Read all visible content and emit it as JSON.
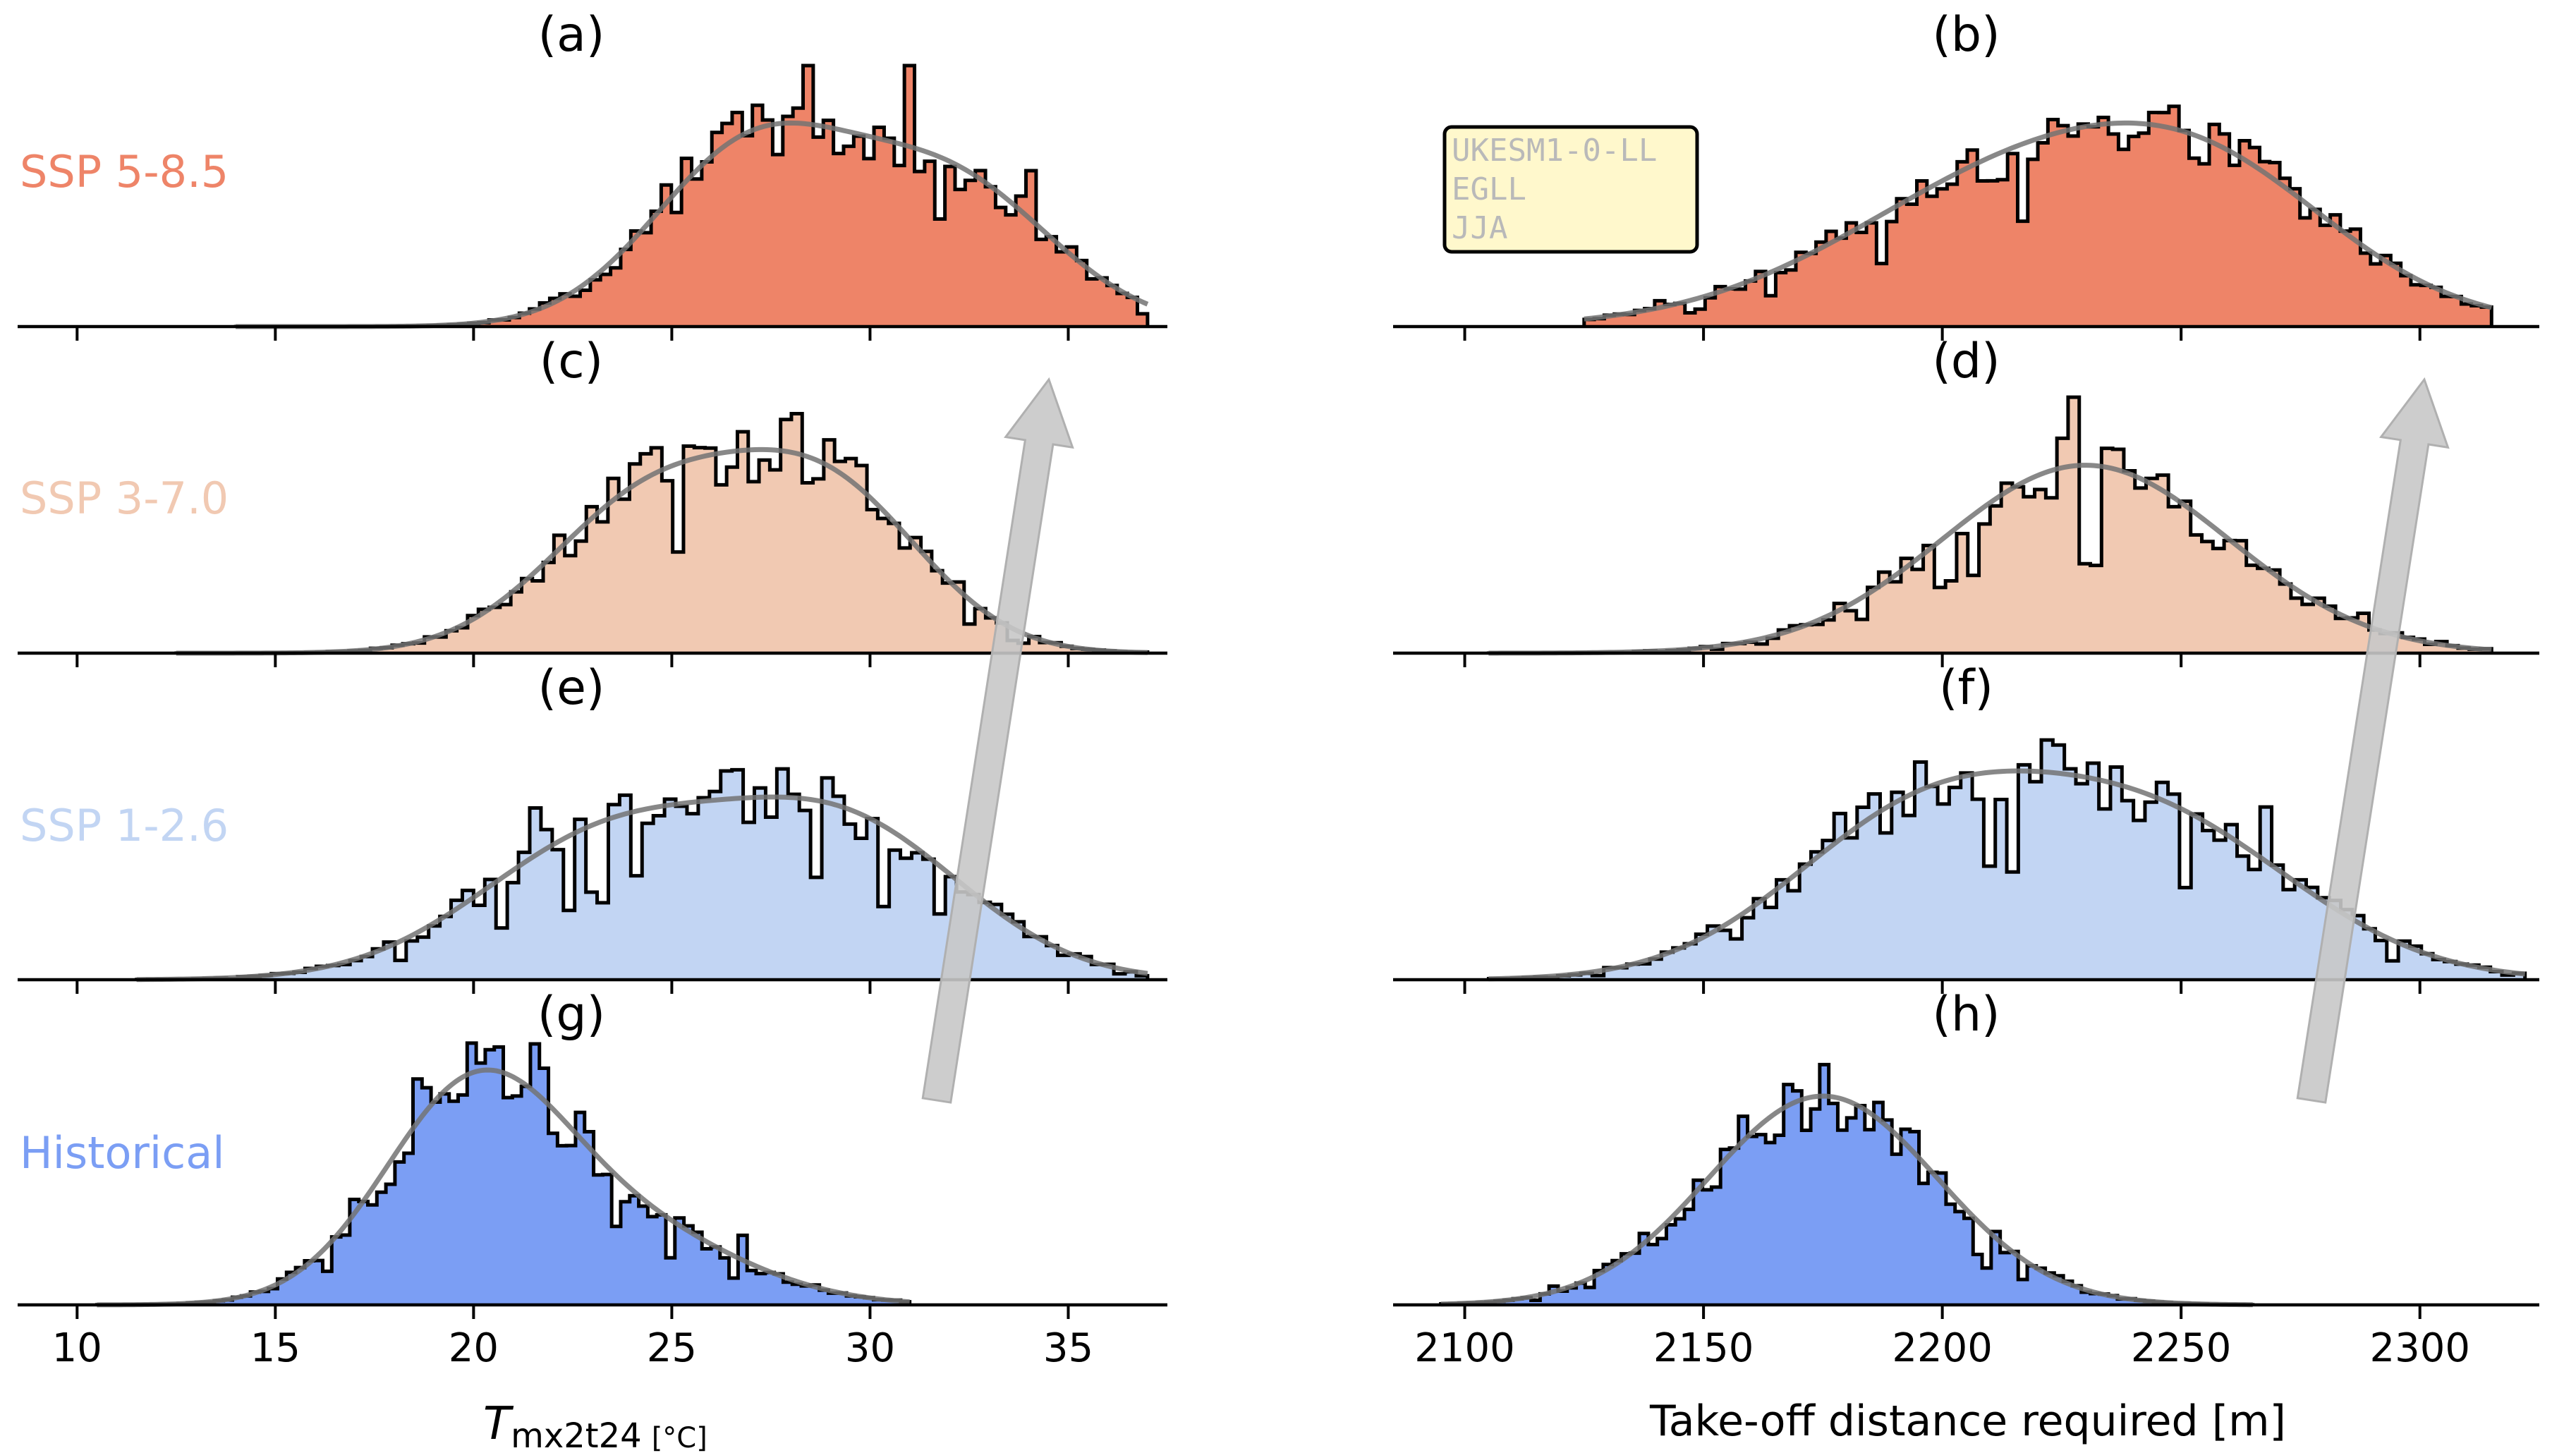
{
  "colors": {
    "ssp585": "#ee8468",
    "ssp370": "#f1c9b2",
    "ssp126": "#c2d5f3",
    "historical": "#7b9ef4",
    "kde": "#737373",
    "arrow": "#c8c8c8",
    "legend_box_fill": "#fff8cc"
  },
  "legend_box": {
    "lines": [
      "UKESM1-0-LL",
      "EGLL",
      "JJA"
    ]
  },
  "row_labels": [
    "SSP 5-8.5",
    "SSP 3-7.0",
    "SSP 1-2.6",
    "Historical"
  ],
  "chart_data": [
    {
      "type": "histogram",
      "panel_titles": [
        "(a)",
        "(c)",
        "(e)",
        "(g)"
      ],
      "xlabel_main": "T",
      "xlabel_sub": "mx2t24",
      "xlabel_unit": "[°C]",
      "xlim": [
        8.5,
        37.5
      ],
      "xticks": [
        10,
        15,
        20,
        25,
        30,
        35
      ],
      "series": [
        {
          "name": "SSP 5-8.5",
          "modes": [
            [
              27,
              2.5,
              0.55
            ],
            [
              32,
              2.6,
              0.45
            ]
          ],
          "kde_peak": 0.78,
          "hist_peak": 1.0,
          "range": [
            14.0,
            37.0
          ]
        },
        {
          "name": "SSP 3-7.0",
          "modes": [
            [
              24.5,
              2.6,
              0.5
            ],
            [
              29,
              2.4,
              0.5
            ]
          ],
          "kde_peak": 0.78,
          "hist_peak": 1.0,
          "range": [
            12.5,
            37.0
          ]
        },
        {
          "name": "SSP 1-2.6",
          "modes": [
            [
              23.5,
              3.3,
              0.5
            ],
            [
              29.5,
              3.0,
              0.5
            ]
          ],
          "kde_peak": 0.7,
          "hist_peak": 1.0,
          "range": [
            11.5,
            37.0
          ]
        },
        {
          "name": "Historical",
          "modes": [
            [
              20,
              2.3,
              0.75
            ],
            [
              24,
              2.8,
              0.25
            ]
          ],
          "kde_peak": 0.9,
          "hist_peak": 1.0,
          "range": [
            10.5,
            31.0
          ]
        }
      ]
    },
    {
      "type": "histogram",
      "panel_titles": [
        "(b)",
        "(d)",
        "(f)",
        "(h)"
      ],
      "xlabel": "Take-off distance required [m]",
      "xlim": [
        2085,
        2325
      ],
      "xticks": [
        2100,
        2150,
        2200,
        2250,
        2300
      ],
      "series": [
        {
          "name": "SSP 5-8.5",
          "modes": [
            [
              2225,
              40,
              0.75
            ],
            [
              2260,
              25,
              0.25
            ]
          ],
          "kde_peak": 0.78,
          "hist_peak": 1.0,
          "range": [
            2125,
            2315
          ]
        },
        {
          "name": "SSP 3-7.0",
          "modes": [
            [
              2230,
              30,
              1.0
            ]
          ],
          "kde_peak": 0.72,
          "hist_peak": 1.0,
          "range": [
            2105,
            2315
          ]
        },
        {
          "name": "SSP 1-2.6",
          "modes": [
            [
              2195,
              28,
              0.5
            ],
            [
              2245,
              30,
              0.5
            ]
          ],
          "kde_peak": 0.8,
          "hist_peak": 1.0,
          "range": [
            2105,
            2322
          ]
        },
        {
          "name": "Historical",
          "modes": [
            [
              2175,
              24,
              1.0
            ]
          ],
          "kde_peak": 0.8,
          "hist_peak": 1.0,
          "range": [
            2095,
            2265
          ]
        }
      ]
    }
  ]
}
